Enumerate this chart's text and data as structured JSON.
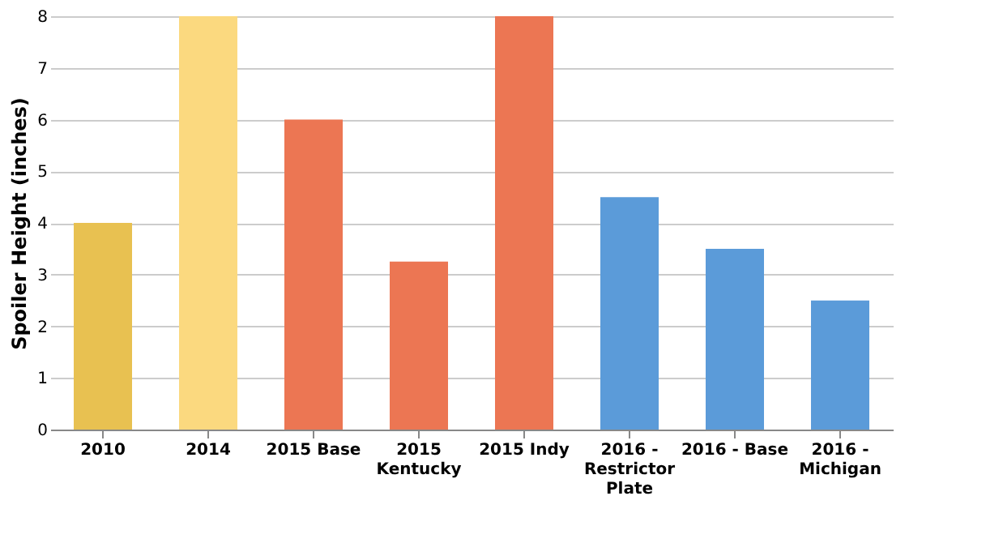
{
  "chart_data": {
    "type": "bar",
    "ylabel": "Spoiler Height (inches)",
    "categories": [
      "2010",
      "2014",
      "2015 Base",
      "2015 Kentucky",
      "2015 Indy",
      "2016 - Restrictor Plate",
      "2016 - Base",
      "2016 - Michigan"
    ],
    "values": [
      4,
      8,
      6,
      3.25,
      8,
      4.5,
      3.5,
      2.5
    ],
    "colors": [
      "#e8c151",
      "#fbd97f",
      "#ec7653",
      "#ec7653",
      "#ec7653",
      "#5b9bd9",
      "#5b9bd9",
      "#5b9bd9"
    ],
    "ylim": [
      0,
      8
    ],
    "yticks": [
      0,
      1,
      2,
      3,
      4,
      5,
      6,
      7,
      8
    ],
    "grid": "y"
  }
}
